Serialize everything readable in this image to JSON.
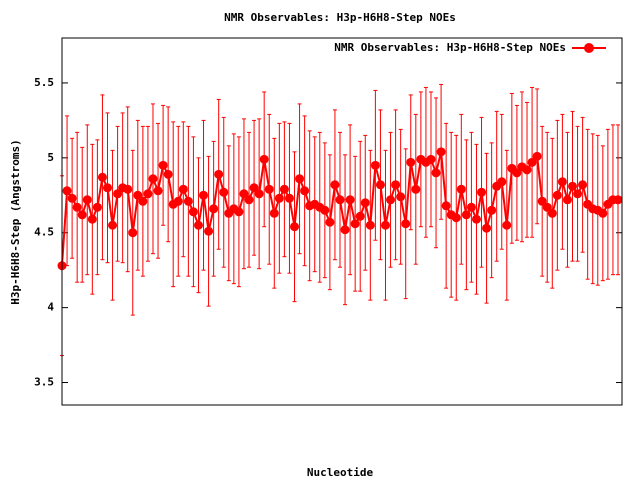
{
  "chart_data": {
    "type": "line",
    "title": "NMR Observables: H3p-H6H8-Step NOEs",
    "y_label": "H3p-H6H8-Step (Angstroms)",
    "x_label": "Nucleotide",
    "x": [
      1,
      2,
      3,
      4,
      5,
      6,
      7,
      8,
      9,
      10,
      11,
      12,
      13,
      14,
      15,
      16,
      17,
      18,
      19,
      20,
      21,
      22,
      23,
      24,
      25,
      26,
      27,
      28,
      29,
      30,
      31,
      32,
      33,
      34,
      35,
      36,
      37,
      38,
      39,
      40,
      41,
      42,
      43,
      44,
      45,
      46,
      47,
      48,
      49,
      50,
      51,
      52,
      53,
      54,
      55,
      56,
      57,
      58,
      59,
      60,
      61,
      62,
      63,
      64,
      65,
      66,
      67,
      68,
      69,
      70,
      71,
      72,
      73,
      74,
      75,
      76,
      77,
      78,
      79,
      80,
      81,
      82,
      83,
      84,
      85,
      86,
      87,
      88,
      89,
      90,
      91,
      92,
      93,
      94,
      95,
      96,
      97,
      98,
      99,
      100,
      101,
      102,
      103,
      104,
      105,
      106,
      107,
      108,
      109,
      110,
      111
    ],
    "xlim": [
      1,
      111
    ],
    "ylim": [
      3.35,
      5.8
    ],
    "yticks": [
      3.5,
      4,
      4.5,
      5,
      5.5
    ],
    "legend": "top-right",
    "series": [
      {
        "name": "NMR Observables: H3p-H6H8-Step NOEs",
        "color": "#ff0000",
        "values": [
          4.28,
          4.78,
          4.73,
          4.67,
          4.62,
          4.72,
          4.59,
          4.67,
          4.87,
          4.8,
          4.55,
          4.76,
          4.8,
          4.79,
          4.5,
          4.75,
          4.71,
          4.76,
          4.86,
          4.78,
          4.95,
          4.89,
          4.69,
          4.71,
          4.79,
          4.71,
          4.64,
          4.55,
          4.75,
          4.51,
          4.66,
          4.89,
          4.77,
          4.63,
          4.66,
          4.64,
          4.76,
          4.72,
          4.8,
          4.76,
          4.99,
          4.79,
          4.63,
          4.73,
          4.79,
          4.73,
          4.54,
          4.86,
          4.78,
          4.68,
          4.69,
          4.67,
          4.65,
          4.57,
          4.82,
          4.72,
          4.52,
          4.72,
          4.56,
          4.61,
          4.7,
          4.55,
          4.95,
          4.82,
          4.55,
          4.72,
          4.82,
          4.74,
          4.56,
          4.97,
          4.79,
          4.99,
          4.97,
          4.99,
          4.9,
          5.04,
          4.68,
          4.62,
          4.6,
          4.79,
          4.62,
          4.67,
          4.59,
          4.77,
          4.53,
          4.65,
          4.81,
          4.84,
          4.55,
          4.93,
          4.9,
          4.94,
          4.92,
          4.97,
          5.01,
          4.71,
          4.67,
          4.63,
          4.75,
          4.84,
          4.72,
          4.81,
          4.76,
          4.82,
          4.69,
          4.66,
          4.65,
          4.63,
          4.69,
          4.72,
          4.72
        ],
        "errors": [
          0.6,
          0.5,
          0.4,
          0.5,
          0.45,
          0.5,
          0.5,
          0.45,
          0.55,
          0.5,
          0.5,
          0.45,
          0.5,
          0.55,
          0.55,
          0.5,
          0.5,
          0.45,
          0.5,
          0.45,
          0.4,
          0.45,
          0.55,
          0.5,
          0.45,
          0.5,
          0.5,
          0.45,
          0.5,
          0.5,
          0.45,
          0.5,
          0.5,
          0.45,
          0.5,
          0.5,
          0.5,
          0.45,
          0.45,
          0.5,
          0.45,
          0.5,
          0.5,
          0.5,
          0.45,
          0.5,
          0.5,
          0.5,
          0.5,
          0.5,
          0.45,
          0.5,
          0.45,
          0.45,
          0.5,
          0.45,
          0.5,
          0.5,
          0.45,
          0.5,
          0.45,
          0.5,
          0.5,
          0.5,
          0.5,
          0.45,
          0.5,
          0.45,
          0.5,
          0.45,
          0.5,
          0.45,
          0.5,
          0.45,
          0.5,
          0.45,
          0.55,
          0.55,
          0.55,
          0.5,
          0.5,
          0.5,
          0.5,
          0.5,
          0.5,
          0.45,
          0.5,
          0.45,
          0.5,
          0.5,
          0.45,
          0.5,
          0.45,
          0.5,
          0.45,
          0.5,
          0.5,
          0.5,
          0.5,
          0.45,
          0.45,
          0.5,
          0.45,
          0.45,
          0.5,
          0.5,
          0.5,
          0.45,
          0.5,
          0.5,
          0.5
        ]
      }
    ]
  }
}
